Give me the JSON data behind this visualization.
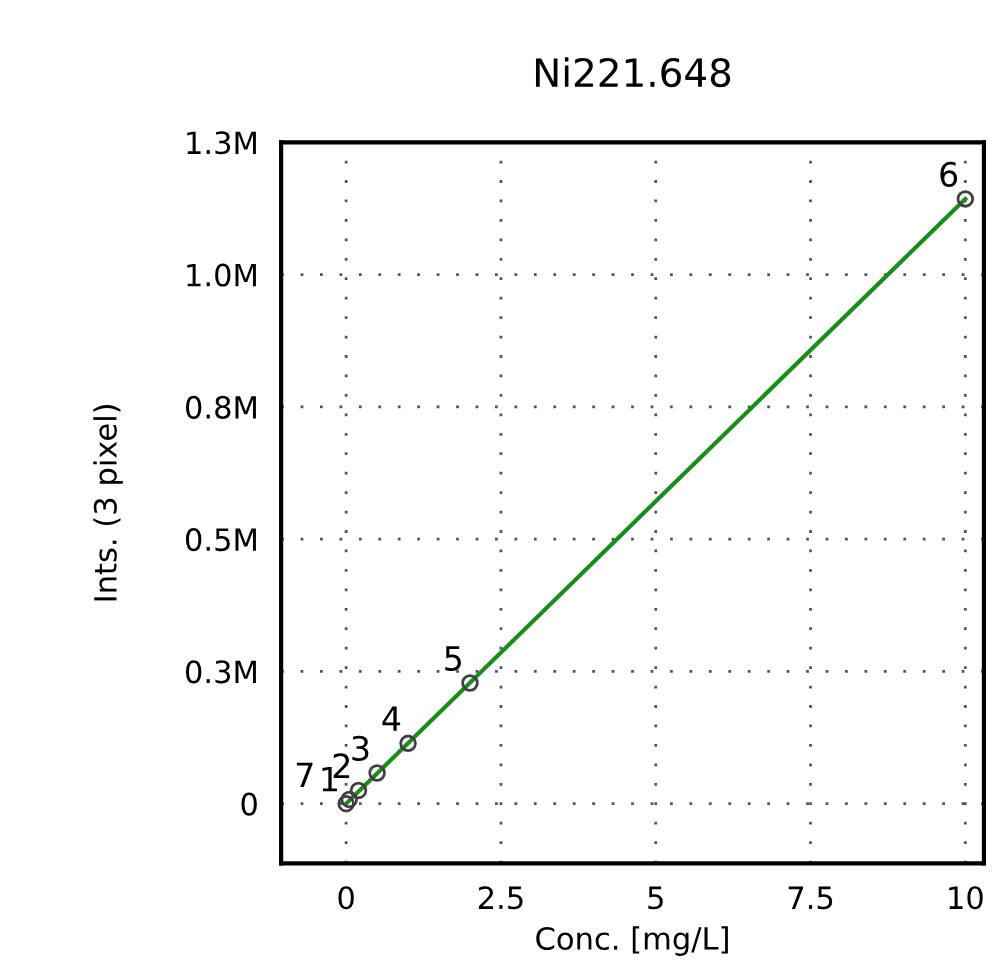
{
  "chart_data": {
    "type": "scatter",
    "title": "Ni221.648",
    "xlabel": "Conc. [mg/L]",
    "ylabel": "Ints. (3 pixel)",
    "series": [
      {
        "color": "#404040",
        "x": [
          0,
          0.2,
          0.5,
          1,
          2,
          10,
          0.05
        ],
        "values": [
          0,
          25000,
          58000,
          114000,
          228000,
          1143000,
          8000
        ],
        "marker": "circle"
      },
      {
        "type": "line",
        "color": "#1a8c1a",
        "x": [
          0,
          10
        ],
        "values": [
          0,
          1143000
        ],
        "marker": "none",
        "line_style": "solid"
      }
    ],
    "annotations": [
      {
        "text": "1",
        "x": 0,
        "y": 0
      },
      {
        "text": "2",
        "x": 0.2,
        "y": 25000
      },
      {
        "text": "3",
        "x": 0.5,
        "y": 58000
      },
      {
        "text": "4",
        "x": 1,
        "y": 114000
      },
      {
        "text": "5",
        "x": 2,
        "y": 228000
      },
      {
        "text": "6",
        "x": 10,
        "y": 1143000
      },
      {
        "text": "7",
        "x": 0.05,
        "y": 8000
      }
    ],
    "xlim": [
      -1.05,
      10.3
    ],
    "ylim": [
      -113000,
      1250000
    ],
    "xticks": [
      0,
      2.5,
      5,
      7.5,
      10
    ],
    "yticks": [
      0,
      {
        "value": 250000,
        "label": "0.3M"
      },
      {
        "value": 500000,
        "label": "0.5M"
      },
      {
        "value": 750000,
        "label": "0.8M"
      },
      {
        "value": 1000000,
        "label": "1.0M"
      },
      {
        "value": 1250000,
        "label": "1.3M"
      }
    ],
    "grid": true
  }
}
